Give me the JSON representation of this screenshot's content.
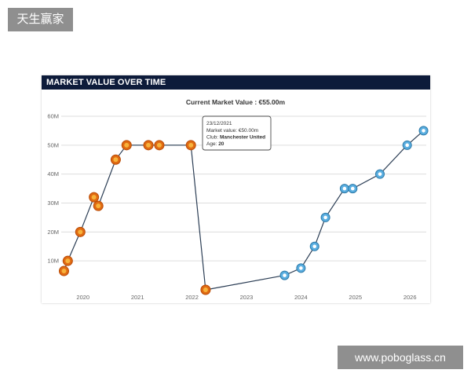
{
  "watermark_top": "天生赢家",
  "watermark_bottom": "www.poboglass.cn",
  "panel": {
    "header": "MARKET VALUE OVER TIME"
  },
  "colors": {
    "header_bg": "#0d1b3a",
    "line": "#2c3e55",
    "grid": "#dddddd",
    "club_united": "#e06a12",
    "club_marseille": "#5aaee0"
  },
  "chart_data": {
    "type": "line",
    "title": "Current Market Value : €55.00m",
    "xlabel": "",
    "ylabel": "",
    "x_ticks": [
      "2020",
      "2021",
      "2022",
      "2023",
      "2024",
      "2025",
      "2026"
    ],
    "y_ticks": [
      "10M",
      "20M",
      "30M",
      "40M",
      "50M",
      "60M"
    ],
    "xlim": [
      2019.6,
      2026.3
    ],
    "ylim": [
      0,
      60
    ],
    "grid": true,
    "points": [
      {
        "x": 2019.65,
        "y": 6.5,
        "club": "united"
      },
      {
        "x": 2019.72,
        "y": 10,
        "club": "united"
      },
      {
        "x": 2019.95,
        "y": 20,
        "club": "united"
      },
      {
        "x": 2020.2,
        "y": 32,
        "club": "united"
      },
      {
        "x": 2020.28,
        "y": 29,
        "club": "united"
      },
      {
        "x": 2020.6,
        "y": 45,
        "club": "united"
      },
      {
        "x": 2020.8,
        "y": 50,
        "club": "united"
      },
      {
        "x": 2021.2,
        "y": 50,
        "club": "united"
      },
      {
        "x": 2021.4,
        "y": 50,
        "club": "united"
      },
      {
        "x": 2021.98,
        "y": 50,
        "club": "united"
      },
      {
        "x": 2022.25,
        "y": 0,
        "club": "united"
      },
      {
        "x": 2023.7,
        "y": 5,
        "club": "marseille"
      },
      {
        "x": 2024.0,
        "y": 7.5,
        "club": "marseille"
      },
      {
        "x": 2024.25,
        "y": 15,
        "club": "marseille"
      },
      {
        "x": 2024.45,
        "y": 25,
        "club": "marseille"
      },
      {
        "x": 2024.8,
        "y": 35,
        "club": "marseille"
      },
      {
        "x": 2024.95,
        "y": 35,
        "club": "marseille"
      },
      {
        "x": 2025.45,
        "y": 40,
        "club": "marseille"
      },
      {
        "x": 2025.95,
        "y": 50,
        "club": "marseille"
      },
      {
        "x": 2026.25,
        "y": 55,
        "club": "marseille"
      }
    ],
    "tooltip": {
      "date": "23/12/2021",
      "line1_label": "Market value: ",
      "line1_value": "€50.00m",
      "line2_label": "Club: ",
      "line2_value": "Manchester United",
      "line3_label": "Age: ",
      "line3_value": "20"
    }
  }
}
